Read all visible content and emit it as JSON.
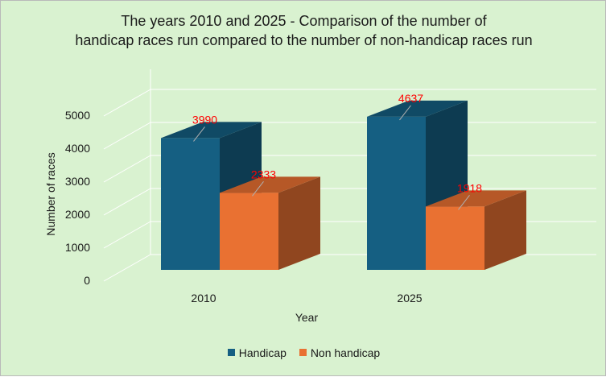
{
  "chart_data": {
    "type": "bar",
    "title_lines": [
      "The years 2010 and 2025 - Comparison of the number of",
      "handicap races run compared to the number of non-handicap races run"
    ],
    "xlabel": "Year",
    "ylabel": "Number of races",
    "categories": [
      "2010",
      "2025"
    ],
    "series": [
      {
        "name": "Handicap",
        "values": [
          3990,
          4637
        ],
        "color": "#155f82"
      },
      {
        "name": "Non handicap",
        "values": [
          2333,
          1918
        ],
        "color": "#e97132"
      }
    ],
    "ylim": [
      0,
      5000
    ],
    "yticks": [
      0,
      1000,
      2000,
      3000,
      4000,
      5000
    ],
    "grid": true,
    "legend_position": "bottom",
    "label_color": "#ff0000",
    "background": "#d9f2d0"
  }
}
